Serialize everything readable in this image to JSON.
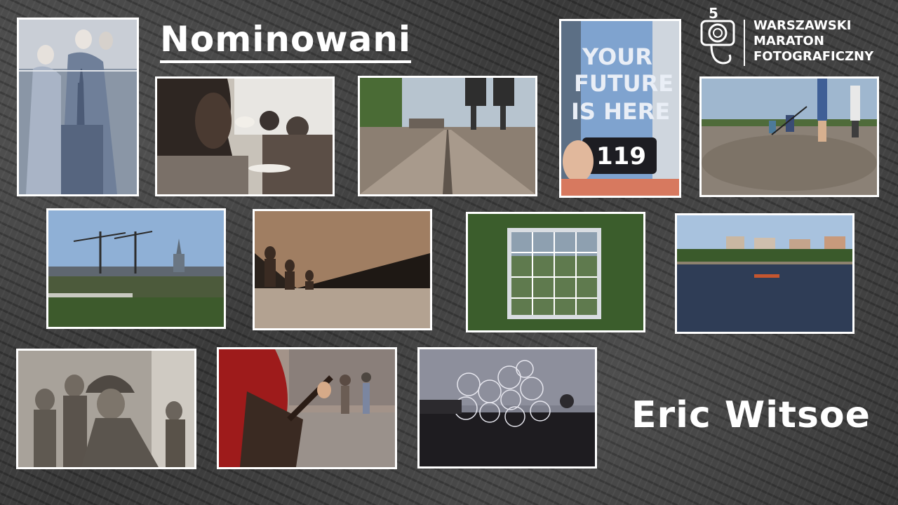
{
  "title": "Nominowani",
  "author": "Eric Witsoe",
  "logo": {
    "line1": "WARSZAWSKI",
    "line2": "MARATON",
    "line3": "FOTOGRAFICZNY",
    "number": "5"
  },
  "photos": {
    "future_sign": {
      "text1": "YOUR",
      "text2": "FUTURE",
      "text3": "IS HERE",
      "phone_number": "119"
    }
  }
}
